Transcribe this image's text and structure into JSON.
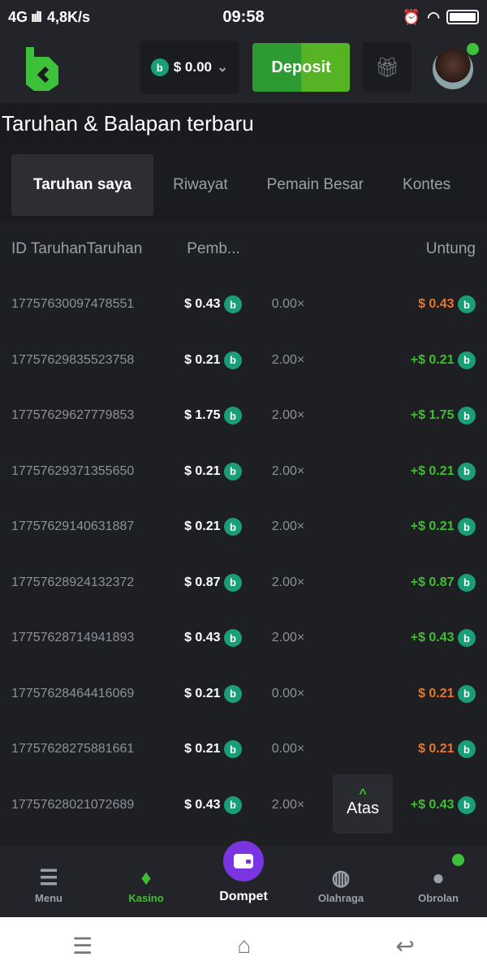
{
  "status_bar": {
    "network": "4G",
    "speed": "4,8K/s",
    "time": "09:58"
  },
  "header": {
    "balance": "$ 0.00",
    "deposit_label": "Deposit",
    "coin_glyph": "b"
  },
  "page_title": "Taruhan & Balapan terbaru",
  "tabs": [
    {
      "label": "Taruhan saya",
      "active": true
    },
    {
      "label": "Riwayat"
    },
    {
      "label": "Pemain Besar"
    },
    {
      "label": "Kontes"
    }
  ],
  "table": {
    "headers": [
      "ID Taruhan",
      "Taruhan",
      "Pemb...",
      "Untung"
    ],
    "rows": [
      {
        "id": "17757630097478551",
        "bet": "$ 0.43",
        "mult": "0.00×",
        "profit": "$ 0.43",
        "win": false
      },
      {
        "id": "17757629835523758",
        "bet": "$ 0.21",
        "mult": "2.00×",
        "profit": "+$ 0.21",
        "win": true
      },
      {
        "id": "17757629627779853",
        "bet": "$ 1.75",
        "mult": "2.00×",
        "profit": "+$ 1.75",
        "win": true
      },
      {
        "id": "17757629371355650",
        "bet": "$ 0.21",
        "mult": "2.00×",
        "profit": "+$ 0.21",
        "win": true
      },
      {
        "id": "17757629140631887",
        "bet": "$ 0.21",
        "mult": "2.00×",
        "profit": "+$ 0.21",
        "win": true
      },
      {
        "id": "17757628924132372",
        "bet": "$ 0.87",
        "mult": "2.00×",
        "profit": "+$ 0.87",
        "win": true
      },
      {
        "id": "17757628714941893",
        "bet": "$ 0.43",
        "mult": "2.00×",
        "profit": "+$ 0.43",
        "win": true
      },
      {
        "id": "17757628464416069",
        "bet": "$ 0.21",
        "mult": "0.00×",
        "profit": "$ 0.21",
        "win": false
      },
      {
        "id": "17757628275881661",
        "bet": "$ 0.21",
        "mult": "0.00×",
        "profit": "$ 0.21",
        "win": false
      },
      {
        "id": "17757628021072689",
        "bet": "$ 0.43",
        "mult": "2.00×",
        "profit": "+$ 0.43",
        "win": true
      }
    ]
  },
  "back_to_top": "Atas",
  "bottom_nav": [
    {
      "label": "Menu",
      "icon": "menu-icon"
    },
    {
      "label": "Kasino",
      "icon": "casino-cards-icon",
      "active": true
    },
    {
      "label": "Dompet",
      "icon": "wallet-icon"
    },
    {
      "label": "Olahraga",
      "icon": "basketball-icon"
    },
    {
      "label": "Obrolan",
      "icon": "chat-icon"
    }
  ],
  "colors": {
    "accent": "#3fbf2f",
    "loss": "#e8762a",
    "wallet": "#7b35e0",
    "coin": "#1a9e7a"
  }
}
